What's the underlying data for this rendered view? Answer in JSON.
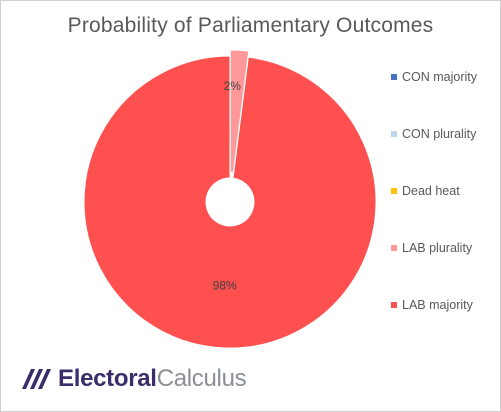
{
  "chart_data": {
    "type": "pie",
    "title": "Probability of Parliamentary Outcomes",
    "categories": [
      "CON majority",
      "CON plurality",
      "Dead heat",
      "LAB plurality",
      "LAB majority"
    ],
    "values": [
      0,
      0,
      0,
      2,
      98
    ],
    "data_labels": [
      "",
      "",
      "",
      "2%",
      "98%"
    ],
    "colors": [
      "#4472c4",
      "#bdd7ee",
      "#ffc000",
      "#ff9999",
      "#ff5050"
    ],
    "legend_position": "right"
  },
  "logo": {
    "bold": "Electoral",
    "light": "Calculus",
    "mark_color": "#3b2d6b"
  }
}
